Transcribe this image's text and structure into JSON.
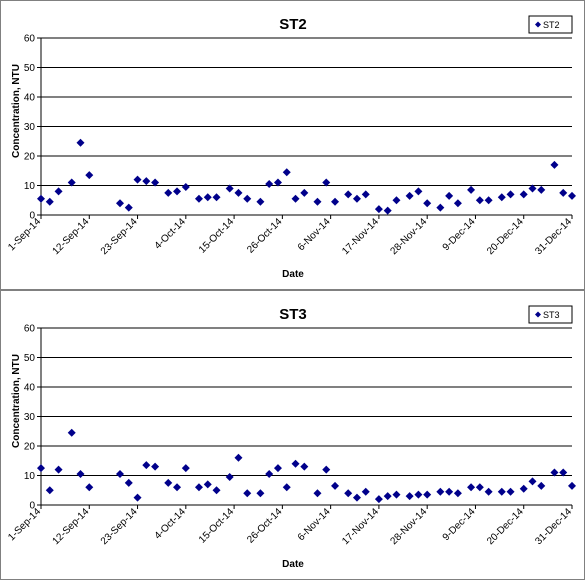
{
  "chart_data": [
    {
      "type": "scatter",
      "title": "ST2",
      "xlabel": "Date",
      "ylabel": "Concentration, NTU",
      "ylim": [
        0,
        60
      ],
      "yticks": [
        "0",
        "10",
        "20",
        "30",
        "40",
        "50",
        "60"
      ],
      "xlim": [
        "2014-09-01",
        "2014-12-31"
      ],
      "xticks": [
        "1-Sep-14",
        "12-Sep-14",
        "23-Sep-14",
        "4-Oct-14",
        "15-Oct-14",
        "26-Oct-14",
        "6-Nov-14",
        "17-Nov-14",
        "28-Nov-14",
        "9-Dec-14",
        "20-Dec-14",
        "31-Dec-14"
      ],
      "marker_color": "#00008B",
      "grid": true,
      "legend_position": "top-right",
      "series": [
        {
          "name": "ST2",
          "x": [
            "2014-09-01",
            "2014-09-03",
            "2014-09-05",
            "2014-09-08",
            "2014-09-10",
            "2014-09-12",
            "2014-09-19",
            "2014-09-21",
            "2014-09-23",
            "2014-09-25",
            "2014-09-27",
            "2014-09-30",
            "2014-10-02",
            "2014-10-04",
            "2014-10-07",
            "2014-10-09",
            "2014-10-11",
            "2014-10-14",
            "2014-10-16",
            "2014-10-18",
            "2014-10-21",
            "2014-10-23",
            "2014-10-25",
            "2014-10-27",
            "2014-10-29",
            "2014-10-31",
            "2014-11-03",
            "2014-11-05",
            "2014-11-07",
            "2014-11-10",
            "2014-11-12",
            "2014-11-14",
            "2014-11-17",
            "2014-11-19",
            "2014-11-21",
            "2014-11-24",
            "2014-11-26",
            "2014-11-28",
            "2014-12-01",
            "2014-12-03",
            "2014-12-05",
            "2014-12-08",
            "2014-12-10",
            "2014-12-12",
            "2014-12-15",
            "2014-12-17",
            "2014-12-20",
            "2014-12-22",
            "2014-12-24",
            "2014-12-27",
            "2014-12-29",
            "2014-12-31"
          ],
          "y": [
            5.5,
            4.5,
            8,
            11,
            24.5,
            13.5,
            4,
            2.5,
            12,
            11.5,
            11,
            7.5,
            8,
            9.5,
            5.5,
            6,
            6,
            9,
            7.5,
            5.5,
            4.5,
            10.5,
            11,
            14.5,
            5.5,
            7.5,
            4.5,
            11,
            4.5,
            7,
            5.5,
            7,
            2,
            1.5,
            5,
            6.5,
            8,
            4,
            2.5,
            6.5,
            4,
            8.5,
            5,
            5,
            6,
            7,
            7,
            9,
            8.5,
            17,
            7.5,
            6.5
          ]
        }
      ]
    },
    {
      "type": "scatter",
      "title": "ST3",
      "xlabel": "Date",
      "ylabel": "Concentration, NTU",
      "ylim": [
        0,
        60
      ],
      "yticks": [
        "0",
        "10",
        "20",
        "30",
        "40",
        "50",
        "60"
      ],
      "xlim": [
        "2014-09-01",
        "2014-12-31"
      ],
      "xticks": [
        "1-Sep-14",
        "12-Sep-14",
        "23-Sep-14",
        "4-Oct-14",
        "15-Oct-14",
        "26-Oct-14",
        "6-Nov-14",
        "17-Nov-14",
        "28-Nov-14",
        "9-Dec-14",
        "20-Dec-14",
        "31-Dec-14"
      ],
      "marker_color": "#00008B",
      "grid": true,
      "legend_position": "top-right",
      "series": [
        {
          "name": "ST3",
          "x": [
            "2014-09-01",
            "2014-09-03",
            "2014-09-05",
            "2014-09-08",
            "2014-09-10",
            "2014-09-12",
            "2014-09-19",
            "2014-09-21",
            "2014-09-23",
            "2014-09-25",
            "2014-09-27",
            "2014-09-30",
            "2014-10-02",
            "2014-10-04",
            "2014-10-07",
            "2014-10-09",
            "2014-10-11",
            "2014-10-14",
            "2014-10-16",
            "2014-10-18",
            "2014-10-21",
            "2014-10-23",
            "2014-10-25",
            "2014-10-27",
            "2014-10-29",
            "2014-10-31",
            "2014-11-03",
            "2014-11-05",
            "2014-11-07",
            "2014-11-10",
            "2014-11-12",
            "2014-11-14",
            "2014-11-17",
            "2014-11-19",
            "2014-11-21",
            "2014-11-24",
            "2014-11-26",
            "2014-11-28",
            "2014-12-01",
            "2014-12-03",
            "2014-12-05",
            "2014-12-08",
            "2014-12-10",
            "2014-12-12",
            "2014-12-15",
            "2014-12-17",
            "2014-12-20",
            "2014-12-22",
            "2014-12-24",
            "2014-12-27",
            "2014-12-29",
            "2014-12-31"
          ],
          "y": [
            12.5,
            5,
            12,
            24.5,
            10.5,
            6,
            10.5,
            7.5,
            2.5,
            13.5,
            13,
            7.5,
            6,
            12.5,
            6,
            7,
            5,
            9.5,
            16,
            4,
            4,
            10.5,
            12.5,
            6,
            14,
            13,
            4,
            12,
            6.5,
            4,
            2.5,
            4.5,
            2,
            3,
            3.5,
            3,
            3.5,
            3.5,
            4.5,
            4.5,
            4,
            6,
            6,
            4.5,
            4.5,
            4.5,
            5.5,
            8,
            6.5,
            11,
            11,
            6.5
          ]
        }
      ]
    }
  ]
}
